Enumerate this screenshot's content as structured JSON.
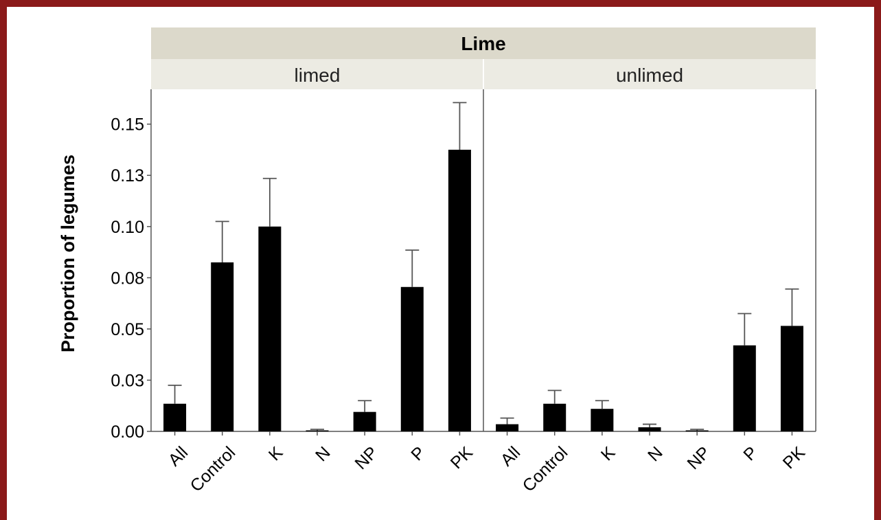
{
  "colors": {
    "frame": "#8b1a1a",
    "strip_outer": "#dcd9cb",
    "strip_inner": "#ecebe3",
    "bars": "#000000"
  },
  "chart_data": {
    "type": "bar",
    "title": "Lime",
    "ylabel": "Proportion of legumes",
    "xlabel": "",
    "ylim": [
      0,
      0.167
    ],
    "yticks": [
      0.0,
      0.025,
      0.05,
      0.075,
      0.1,
      0.125,
      0.15
    ],
    "ytick_labels": [
      "0.00",
      "0.03",
      "0.05",
      "0.08",
      "0.10",
      "0.13",
      "0.15"
    ],
    "categories": [
      "All",
      "Control",
      "K",
      "N",
      "NP",
      "P",
      "PK"
    ],
    "grid": false,
    "legend": "none",
    "panels": [
      {
        "name": "limed",
        "values": [
          0.0135,
          0.0825,
          0.1,
          0.0005,
          0.0095,
          0.0705,
          0.1375
        ],
        "error_upper": [
          0.0225,
          0.1025,
          0.1235,
          0.001,
          0.015,
          0.0885,
          0.1605
        ]
      },
      {
        "name": "unlimed",
        "values": [
          0.0035,
          0.0135,
          0.011,
          0.002,
          0.0005,
          0.042,
          0.0515
        ],
        "error_upper": [
          0.0065,
          0.02,
          0.015,
          0.0035,
          0.001,
          0.0575,
          0.0695
        ]
      }
    ]
  }
}
